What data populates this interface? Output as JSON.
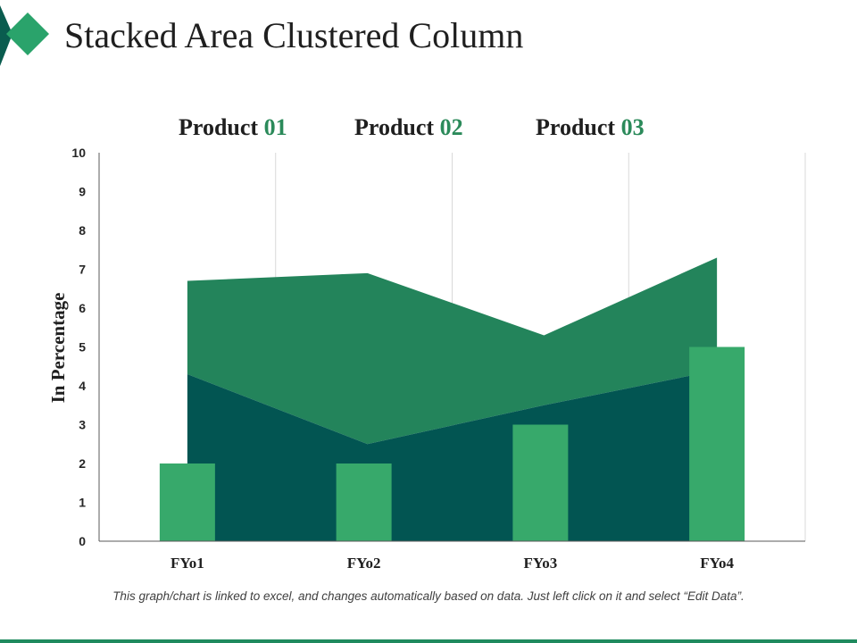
{
  "slide": {
    "title": "Stacked Area Clustered Column",
    "footnote": "This graph/chart is linked to excel, and changes automatically based on data.  Just left click on it and select “Edit Data”."
  },
  "colors": {
    "product_01": "#37a96b",
    "product_02": "#025552",
    "product_03": "#23845b",
    "deco_light": "#2aa36b",
    "deco_dark": "#0a5c4f",
    "gridline": "#d9d9d9",
    "axis": "#595959"
  },
  "legend": [
    {
      "name": "Product ",
      "num": "01",
      "series": "product_01"
    },
    {
      "name": "Product ",
      "num": "02",
      "series": "product_02"
    },
    {
      "name": "Product ",
      "num": "03",
      "series": "product_03"
    }
  ],
  "chart_data": {
    "type": "area+bar",
    "title": "Stacked Area Clustered Column",
    "categories": [
      "FY01",
      "FY02",
      "FY03",
      "FY04"
    ],
    "category_labels": [
      "FYo1",
      "FYo2",
      "FYo3",
      "FYo4"
    ],
    "ylabel": "In Percentage",
    "xlabel": "",
    "ylim": [
      0,
      10
    ],
    "yticks": [
      "0",
      "1",
      "2",
      "3",
      "4",
      "5",
      "6",
      "7",
      "8",
      "9",
      "10"
    ],
    "grid": "vertical",
    "legend_position": "top",
    "series": [
      {
        "name": "Product 01",
        "type": "column",
        "values": [
          2,
          2,
          3,
          5
        ]
      },
      {
        "name": "Product 02",
        "type": "stacked-area",
        "values": [
          4.3,
          2.5,
          3.5,
          4.4
        ]
      },
      {
        "name": "Product 03",
        "type": "stacked-area",
        "values": [
          2.4,
          4.4,
          1.8,
          2.9
        ]
      }
    ]
  }
}
